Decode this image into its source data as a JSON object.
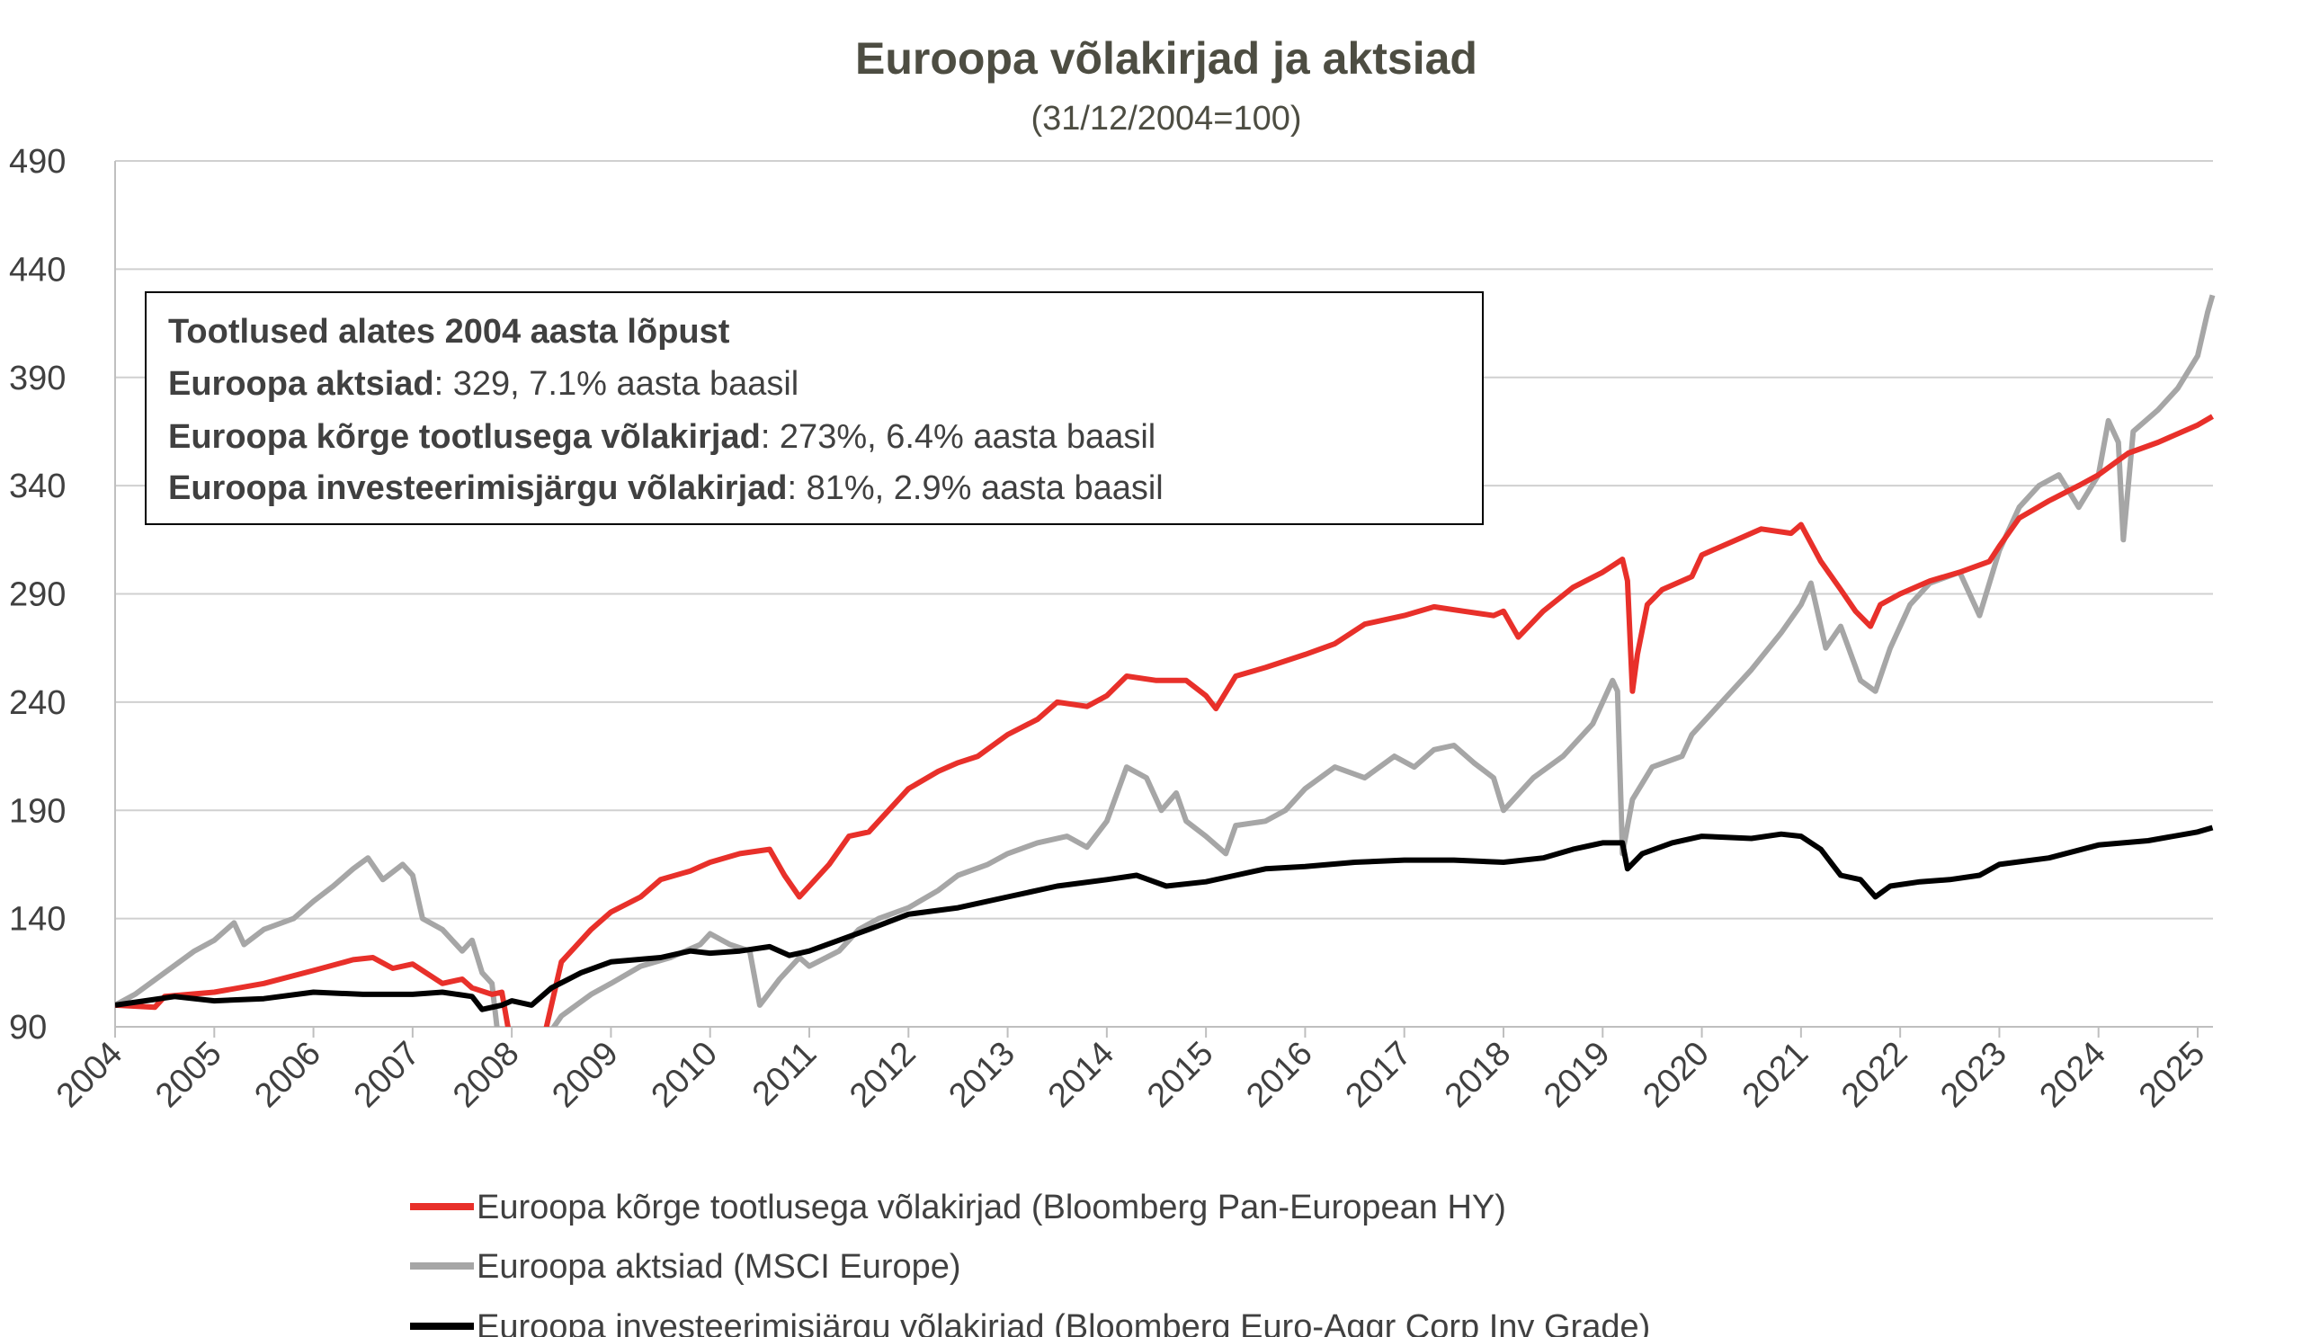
{
  "chart_data": {
    "type": "line",
    "title": "Euroopa võlakirjad ja aktsiad",
    "subtitle": "(31/12/2004=100)",
    "xlabel": "",
    "ylabel": "",
    "ylim": [
      90,
      490
    ],
    "yticks": [
      90,
      140,
      190,
      240,
      290,
      340,
      390,
      440,
      490
    ],
    "xlim": [
      2004,
      2025.15
    ],
    "xticks": [
      "2004",
      "2005",
      "2006",
      "2007",
      "2008",
      "2009",
      "2010",
      "2011",
      "2012",
      "2013",
      "2014",
      "2015",
      "2016",
      "2017",
      "2018",
      "2019",
      "2020",
      "2021",
      "2022",
      "2023",
      "2024",
      "2025"
    ],
    "grid": true,
    "legend_position": "bottom",
    "annotation": {
      "heading": "Tootlused alates 2004 aasta lõpust",
      "lines": [
        {
          "bold": "Euroopa aktsiad",
          "rest": ": 329, 7.1% aasta baasil"
        },
        {
          "bold": "Euroopa kõrge tootlusega võlakirjad",
          "rest": ": 273%, 6.4% aasta baasil"
        },
        {
          "bold": "Euroopa investeerimisjärgu võlakirjad",
          "rest": ": 81%, 2.9% aasta baasil"
        }
      ]
    },
    "series": [
      {
        "name": "Euroopa kõrge tootlusega võlakirjad (Bloomberg Pan-European HY)",
        "color": "#e8302a",
        "x": [
          2004,
          2004.4,
          2004.5,
          2005,
          2005.5,
          2006,
          2006.4,
          2006.6,
          2006.8,
          2007,
          2007.3,
          2007.5,
          2007.6,
          2007.8,
          2007.9,
          2008.0,
          2008.3,
          2008.5,
          2008.8,
          2009,
          2009.3,
          2009.5,
          2009.8,
          2010,
          2010.3,
          2010.6,
          2010.75,
          2010.9,
          2011,
          2011.2,
          2011.4,
          2011.6,
          2011.8,
          2012,
          2012.3,
          2012.5,
          2012.7,
          2013,
          2013.3,
          2013.5,
          2013.8,
          2014,
          2014.2,
          2014.5,
          2014.8,
          2015,
          2015.1,
          2015.3,
          2015.6,
          2016,
          2016.3,
          2016.6,
          2017,
          2017.3,
          2017.6,
          2017.9,
          2018,
          2018.15,
          2018.4,
          2018.7,
          2019,
          2019.2,
          2019.25,
          2019.3,
          2019.35,
          2019.45,
          2019.6,
          2019.9,
          2020,
          2020.3,
          2020.6,
          2020.9,
          2021,
          2021.2,
          2021.4,
          2021.55,
          2021.7,
          2021.8,
          2022,
          2022.3,
          2022.6,
          2022.9,
          2023,
          2023.2,
          2023.5,
          2023.8,
          2024,
          2024.3,
          2024.6,
          2025,
          2025.15
        ],
        "y": [
          100,
          99,
          104,
          106,
          110,
          116,
          121,
          122,
          117,
          119,
          110,
          112,
          108,
          105,
          106,
          80,
          80,
          120,
          135,
          143,
          150,
          158,
          162,
          166,
          170,
          172,
          160,
          150,
          155,
          165,
          178,
          180,
          190,
          200,
          208,
          212,
          215,
          225,
          232,
          240,
          238,
          243,
          252,
          250,
          250,
          243,
          237,
          252,
          256,
          262,
          267,
          276,
          280,
          284,
          282,
          280,
          282,
          270,
          282,
          293,
          300,
          306,
          296,
          245,
          262,
          285,
          292,
          298,
          308,
          314,
          320,
          318,
          322,
          305,
          292,
          282,
          275,
          285,
          290,
          296,
          300,
          305,
          312,
          325,
          333,
          340,
          345,
          355,
          360,
          368,
          372
        ]
      },
      {
        "name": "Euroopa aktsiad (MSCI Europe)",
        "color": "#a6a6a6",
        "x": [
          2004,
          2004.2,
          2004.5,
          2004.8,
          2005,
          2005.2,
          2005.3,
          2005.5,
          2005.8,
          2006,
          2006.2,
          2006.4,
          2006.55,
          2006.7,
          2006.9,
          2007,
          2007.1,
          2007.3,
          2007.5,
          2007.6,
          2007.7,
          2007.8,
          2007.85,
          2007.9,
          2008.35,
          2008.5,
          2008.8,
          2009,
          2009.3,
          2009.6,
          2009.9,
          2010,
          2010.2,
          2010.4,
          2010.5,
          2010.7,
          2010.9,
          2011,
          2011.3,
          2011.5,
          2011.7,
          2012,
          2012.3,
          2012.5,
          2012.8,
          2013,
          2013.3,
          2013.6,
          2013.8,
          2014,
          2014.2,
          2014.4,
          2014.55,
          2014.7,
          2014.8,
          2015,
          2015.2,
          2015.3,
          2015.6,
          2015.8,
          2016,
          2016.3,
          2016.6,
          2016.9,
          2017.1,
          2017.3,
          2017.5,
          2017.7,
          2017.9,
          2018,
          2018.3,
          2018.6,
          2018.9,
          2019.1,
          2019.15,
          2019.2,
          2019.3,
          2019.5,
          2019.8,
          2019.9,
          2020.2,
          2020.5,
          2020.8,
          2021,
          2021.1,
          2021.25,
          2021.4,
          2021.6,
          2021.75,
          2021.9,
          2022.1,
          2022.3,
          2022.6,
          2022.8,
          2023,
          2023.2,
          2023.4,
          2023.6,
          2023.8,
          2024,
          2024.1,
          2024.2,
          2024.25,
          2024.35,
          2024.6,
          2024.8,
          2025,
          2025.1,
          2025.15
        ],
        "y": [
          100,
          105,
          115,
          125,
          130,
          138,
          128,
          135,
          140,
          148,
          155,
          163,
          168,
          158,
          165,
          160,
          140,
          135,
          125,
          130,
          115,
          110,
          90,
          80,
          85,
          95,
          105,
          110,
          118,
          122,
          128,
          133,
          128,
          125,
          100,
          112,
          122,
          118,
          125,
          135,
          140,
          145,
          153,
          160,
          165,
          170,
          175,
          178,
          173,
          185,
          210,
          205,
          190,
          198,
          185,
          178,
          170,
          183,
          185,
          190,
          200,
          210,
          205,
          215,
          210,
          218,
          220,
          212,
          205,
          190,
          205,
          215,
          230,
          250,
          245,
          170,
          195,
          210,
          215,
          225,
          240,
          255,
          272,
          285,
          295,
          265,
          275,
          250,
          245,
          265,
          285,
          295,
          300,
          280,
          310,
          330,
          340,
          345,
          330,
          345,
          370,
          360,
          315,
          365,
          375,
          385,
          400,
          420,
          428
        ]
      },
      {
        "name": "Euroopa investeerimisjärgu võlakirjad (Bloomberg Euro-Aggr Corp Inv Grade)",
        "color": "#000000",
        "x": [
          2004,
          2004.3,
          2004.6,
          2005,
          2005.5,
          2006,
          2006.5,
          2007,
          2007.3,
          2007.6,
          2007.7,
          2007.9,
          2008,
          2008.2,
          2008.4,
          2008.7,
          2009,
          2009.5,
          2009.8,
          2010,
          2010.3,
          2010.6,
          2010.8,
          2011,
          2011.3,
          2011.6,
          2012,
          2012.5,
          2013,
          2013.5,
          2014,
          2014.3,
          2014.6,
          2015,
          2015.3,
          2015.6,
          2016,
          2016.5,
          2017,
          2017.5,
          2018,
          2018.4,
          2018.7,
          2019,
          2019.2,
          2019.25,
          2019.4,
          2019.7,
          2020,
          2020.5,
          2020.8,
          2021,
          2021.2,
          2021.4,
          2021.6,
          2021.75,
          2021.9,
          2022.2,
          2022.5,
          2022.8,
          2023,
          2023.5,
          2024,
          2024.5,
          2025,
          2025.15
        ],
        "y": [
          100,
          102,
          104,
          102,
          103,
          106,
          105,
          105,
          106,
          104,
          98,
          100,
          102,
          100,
          108,
          115,
          120,
          122,
          125,
          124,
          125,
          127,
          123,
          125,
          130,
          135,
          142,
          145,
          150,
          155,
          158,
          160,
          155,
          157,
          160,
          163,
          164,
          166,
          167,
          167,
          166,
          168,
          172,
          175,
          175,
          163,
          170,
          175,
          178,
          177,
          179,
          178,
          172,
          160,
          158,
          150,
          155,
          157,
          158,
          160,
          165,
          168,
          174,
          176,
          180,
          182
        ]
      }
    ]
  }
}
